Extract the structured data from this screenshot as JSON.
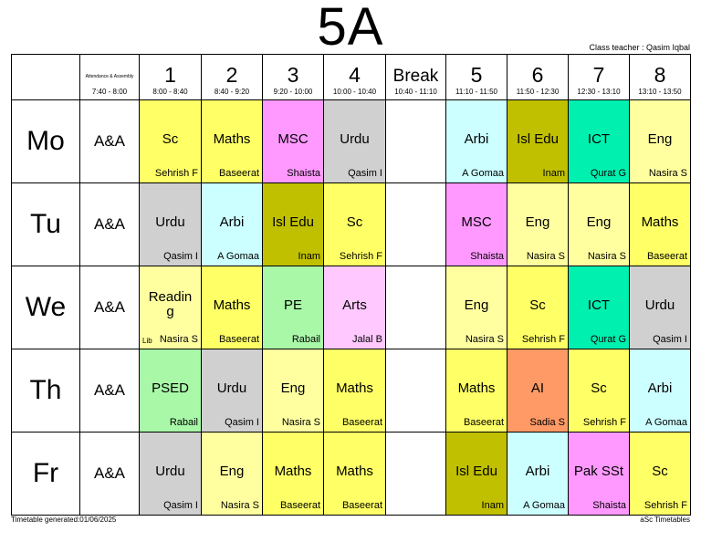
{
  "title": "5A",
  "class_teacher": "Class teacher : Qasim Iqbal",
  "footer": {
    "generated": "Timetable generated:01/06/2025",
    "brand": "aSc Timetables"
  },
  "colors": {
    "yellow": "#ffff66",
    "lightyellow": "#ffffa0",
    "pink": "#ff99ff",
    "gray": "#d0d0d0",
    "cyan": "#ccffff",
    "olive": "#c0c000",
    "teal": "#00f0b0",
    "green": "#a8f8a8",
    "lightpink": "#ffc8ff",
    "orange": "#ff9966"
  },
  "header": {
    "assembly_label": "Attendance & Assembly",
    "assembly_time": "7:40 - 8:00",
    "periods": [
      {
        "num": "1",
        "time": "8:00 - 8:40"
      },
      {
        "num": "2",
        "time": "8:40 - 9:20"
      },
      {
        "num": "3",
        "time": "9:20 - 10:00"
      },
      {
        "num": "4",
        "time": "10:00 - 10:40"
      },
      {
        "num": "Break",
        "time": "10:40 - 11:10"
      },
      {
        "num": "5",
        "time": "11:10 - 11:50"
      },
      {
        "num": "6",
        "time": "11:50 - 12:30"
      },
      {
        "num": "7",
        "time": "12:30 - 13:10"
      },
      {
        "num": "8",
        "time": "13:10 - 13:50"
      }
    ]
  },
  "days": [
    {
      "name": "Mo",
      "assembly": "A&A",
      "lessons": [
        {
          "subject": "Sc",
          "teacher": "Sehrish F",
          "color": "yellow"
        },
        {
          "subject": "Maths",
          "teacher": "Baseerat",
          "color": "yellow"
        },
        {
          "subject": "MSC",
          "teacher": "Shaista",
          "color": "pink"
        },
        {
          "subject": "Urdu",
          "teacher": "Qasim I",
          "color": "gray"
        },
        {
          "subject": "",
          "teacher": "",
          "color": "none"
        },
        {
          "subject": "Arbi",
          "teacher": "A Gomaa",
          "color": "cyan"
        },
        {
          "subject": "Isl Edu",
          "teacher": "Inam",
          "color": "olive"
        },
        {
          "subject": "ICT",
          "teacher": "Qurat G",
          "color": "teal"
        },
        {
          "subject": "Eng",
          "teacher": "Nasira S",
          "color": "lightyellow"
        }
      ]
    },
    {
      "name": "Tu",
      "assembly": "A&A",
      "lessons": [
        {
          "subject": "Urdu",
          "teacher": "Qasim I",
          "color": "gray"
        },
        {
          "subject": "Arbi",
          "teacher": "A Gomaa",
          "color": "cyan"
        },
        {
          "subject": "Isl Edu",
          "teacher": "Inam",
          "color": "olive"
        },
        {
          "subject": "Sc",
          "teacher": "Sehrish F",
          "color": "yellow"
        },
        {
          "subject": "",
          "teacher": "",
          "color": "none"
        },
        {
          "subject": "MSC",
          "teacher": "Shaista",
          "color": "pink"
        },
        {
          "subject": "Eng",
          "teacher": "Nasira S",
          "color": "lightyellow"
        },
        {
          "subject": "Eng",
          "teacher": "Nasira S",
          "color": "lightyellow"
        },
        {
          "subject": "Maths",
          "teacher": "Baseerat",
          "color": "yellow"
        }
      ]
    },
    {
      "name": "We",
      "assembly": "A&A",
      "lessons": [
        {
          "subject": "Readin g",
          "teacher": "Nasira S",
          "location": "Lib",
          "color": "lightyellow"
        },
        {
          "subject": "Maths",
          "teacher": "Baseerat",
          "color": "yellow"
        },
        {
          "subject": "PE",
          "teacher": "Rabail",
          "color": "green"
        },
        {
          "subject": "Arts",
          "teacher": "Jalal B",
          "color": "lightpink"
        },
        {
          "subject": "",
          "teacher": "",
          "color": "none"
        },
        {
          "subject": "Eng",
          "teacher": "Nasira S",
          "color": "lightyellow"
        },
        {
          "subject": "Sc",
          "teacher": "Sehrish F",
          "color": "yellow"
        },
        {
          "subject": "ICT",
          "teacher": "Qurat G",
          "color": "teal"
        },
        {
          "subject": "Urdu",
          "teacher": "Qasim I",
          "color": "gray"
        }
      ]
    },
    {
      "name": "Th",
      "assembly": "A&A",
      "lessons": [
        {
          "subject": "PSED",
          "teacher": "Rabail",
          "color": "green"
        },
        {
          "subject": "Urdu",
          "teacher": "Qasim I",
          "color": "gray"
        },
        {
          "subject": "Eng",
          "teacher": "Nasira S",
          "color": "lightyellow"
        },
        {
          "subject": "Maths",
          "teacher": "Baseerat",
          "color": "yellow"
        },
        {
          "subject": "",
          "teacher": "",
          "color": "none"
        },
        {
          "subject": "Maths",
          "teacher": "Baseerat",
          "color": "yellow"
        },
        {
          "subject": "AI",
          "teacher": "Sadia S",
          "color": "orange"
        },
        {
          "subject": "Sc",
          "teacher": "Sehrish F",
          "color": "yellow"
        },
        {
          "subject": "Arbi",
          "teacher": "A Gomaa",
          "color": "cyan"
        }
      ]
    },
    {
      "name": "Fr",
      "assembly": "A&A",
      "lessons": [
        {
          "subject": "Urdu",
          "teacher": "Qasim I",
          "color": "gray"
        },
        {
          "subject": "Eng",
          "teacher": "Nasira S",
          "color": "lightyellow"
        },
        {
          "subject": "Maths",
          "teacher": "Baseerat",
          "color": "yellow"
        },
        {
          "subject": "Maths",
          "teacher": "Baseerat",
          "color": "yellow"
        },
        {
          "subject": "",
          "teacher": "",
          "color": "none"
        },
        {
          "subject": "Isl Edu",
          "teacher": "Inam",
          "color": "olive"
        },
        {
          "subject": "Arbi",
          "teacher": "A Gomaa",
          "color": "cyan"
        },
        {
          "subject": "Pak SSt",
          "teacher": "Shaista",
          "color": "pink"
        },
        {
          "subject": "Sc",
          "teacher": "Sehrish F",
          "color": "yellow"
        }
      ]
    }
  ]
}
